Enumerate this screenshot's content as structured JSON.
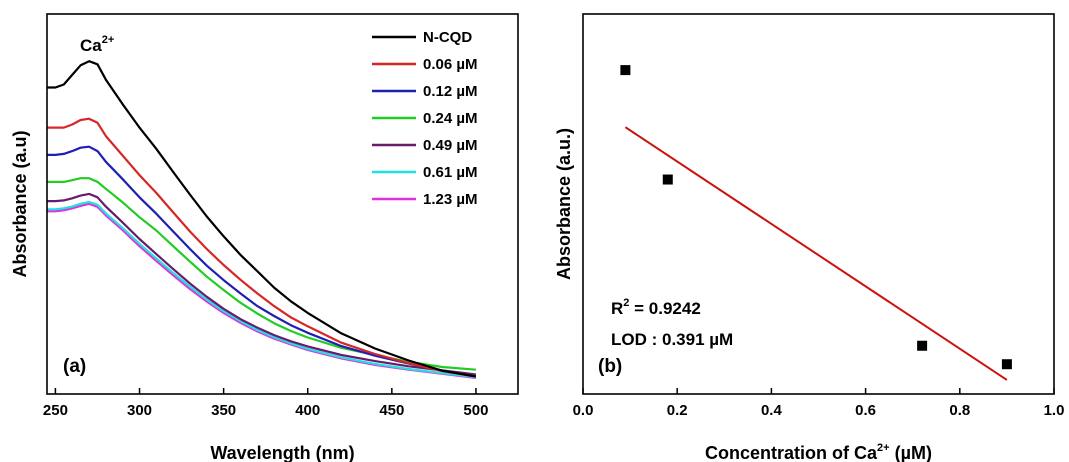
{
  "chart_data": [
    {
      "type": "line",
      "panel_label": "(a)",
      "annotation_base": "Ca",
      "annotation_sup": "2+",
      "xlabel": "Wavelength (nm)",
      "ylabel": "Absorbance (a.u)",
      "xlim": [
        245,
        525
      ],
      "ylim": [
        0,
        1
      ],
      "xticks": [
        250,
        300,
        350,
        400,
        450,
        500
      ],
      "y_ticks_labeled": false,
      "legend_position": "top-right",
      "x": [
        245,
        250,
        255,
        260,
        265,
        270,
        275,
        280,
        290,
        300,
        310,
        320,
        330,
        340,
        350,
        360,
        370,
        380,
        390,
        400,
        420,
        440,
        460,
        480,
        500
      ],
      "series": [
        {
          "name": "N-CQD",
          "color": "#000000",
          "values": [
            0.861,
            0.861,
            0.87,
            0.898,
            0.926,
            0.938,
            0.929,
            0.884,
            0.812,
            0.744,
            0.682,
            0.614,
            0.548,
            0.484,
            0.426,
            0.372,
            0.324,
            0.276,
            0.236,
            0.202,
            0.142,
            0.098,
            0.063,
            0.033,
            0.016
          ]
        },
        {
          "name": "0.06 µM",
          "color": "#d62728",
          "values": [
            0.744,
            0.744,
            0.744,
            0.753,
            0.766,
            0.77,
            0.758,
            0.719,
            0.662,
            0.605,
            0.553,
            0.496,
            0.44,
            0.389,
            0.342,
            0.299,
            0.259,
            0.222,
            0.189,
            0.163,
            0.115,
            0.082,
            0.055,
            0.032,
            0.016
          ]
        },
        {
          "name": "0.12 µM",
          "color": "#1f1fb4",
          "values": [
            0.664,
            0.664,
            0.667,
            0.675,
            0.685,
            0.688,
            0.675,
            0.644,
            0.593,
            0.54,
            0.492,
            0.44,
            0.389,
            0.34,
            0.298,
            0.259,
            0.222,
            0.193,
            0.166,
            0.144,
            0.105,
            0.077,
            0.054,
            0.033,
            0.016
          ]
        },
        {
          "name": "0.24 µM",
          "color": "#22cc22",
          "values": [
            0.585,
            0.585,
            0.585,
            0.59,
            0.596,
            0.596,
            0.585,
            0.565,
            0.525,
            0.482,
            0.443,
            0.397,
            0.352,
            0.308,
            0.269,
            0.232,
            0.2,
            0.172,
            0.149,
            0.13,
            0.1,
            0.079,
            0.059,
            0.044,
            0.036
          ]
        },
        {
          "name": "0.49 µM",
          "color": "#6a1b6a",
          "values": [
            0.529,
            0.529,
            0.531,
            0.537,
            0.545,
            0.55,
            0.54,
            0.513,
            0.466,
            0.418,
            0.374,
            0.33,
            0.288,
            0.249,
            0.214,
            0.184,
            0.159,
            0.137,
            0.119,
            0.104,
            0.079,
            0.061,
            0.046,
            0.034,
            0.022
          ]
        },
        {
          "name": "0.61 µM",
          "color": "#22e0e0",
          "values": [
            0.505,
            0.505,
            0.508,
            0.513,
            0.521,
            0.526,
            0.518,
            0.493,
            0.45,
            0.404,
            0.361,
            0.319,
            0.279,
            0.241,
            0.207,
            0.178,
            0.152,
            0.131,
            0.113,
            0.097,
            0.072,
            0.053,
            0.038,
            0.026,
            0.014
          ]
        },
        {
          "name": "1.23 µM",
          "color": "#e030e0",
          "values": [
            0.499,
            0.499,
            0.502,
            0.508,
            0.515,
            0.521,
            0.512,
            0.487,
            0.444,
            0.397,
            0.354,
            0.312,
            0.272,
            0.235,
            0.202,
            0.173,
            0.148,
            0.127,
            0.11,
            0.094,
            0.069,
            0.05,
            0.036,
            0.024,
            0.012
          ]
        }
      ]
    },
    {
      "type": "scatter",
      "panel_label": "(b)",
      "xlabel_base": "Concentration of Ca",
      "xlabel_sup": "2+",
      "xlabel_unit": " (µM)",
      "ylabel": "Absorbance (a.u.)",
      "xlim": [
        0.0,
        1.0
      ],
      "ylim": [
        0,
        1
      ],
      "xticks": [
        "0.0",
        "0.2",
        "0.4",
        "0.6",
        "0.8",
        "1.0"
      ],
      "y_ticks_labeled": false,
      "points": [
        {
          "x": 0.09,
          "y": 0.912
        },
        {
          "x": 0.18,
          "y": 0.592
        },
        {
          "x": 0.72,
          "y": 0.106
        },
        {
          "x": 0.9,
          "y": 0.052
        }
      ],
      "point_color": "#000000",
      "fit_line": {
        "x": [
          0.09,
          0.9
        ],
        "y": [
          0.745,
          0.006
        ],
        "color": "#cc1111"
      },
      "r2_base": "R",
      "r2_sup": "2",
      "r2_value": " = 0.9242",
      "lod_text": "LOD : 0.391 µM"
    }
  ]
}
